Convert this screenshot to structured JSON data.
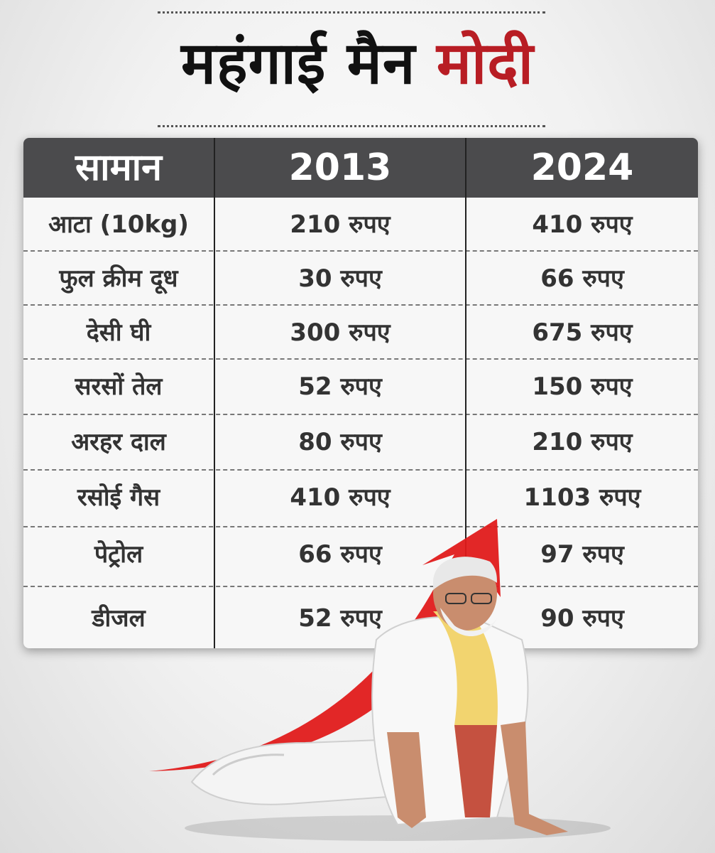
{
  "title": {
    "prefix": "महंगाई मैन",
    "highlight": "मोदी"
  },
  "table": {
    "headers": [
      "सामान",
      "2013",
      "2024"
    ],
    "rows": [
      {
        "item": "आटा (10kg)",
        "y2013": "210 रुपए",
        "y2024": "410 रुपए"
      },
      {
        "item": "फुल क्रीम दूध",
        "y2013": "30 रुपए",
        "y2024": "66 रुपए"
      },
      {
        "item": "देसी घी",
        "y2013": "300 रुपए",
        "y2024": "675 रुपए"
      },
      {
        "item": "सरसों तेल",
        "y2013": "52 रुपए",
        "y2024": "150 रुपए"
      },
      {
        "item": "अरहर दाल",
        "y2013": "80 रुपए",
        "y2024": "210 रुपए"
      },
      {
        "item": "रसोई गैस",
        "y2013": "410 रुपए",
        "y2024": "1103 रुपए"
      },
      {
        "item": "पेट्रोल",
        "y2013": "66 रुपए",
        "y2024": "97 रुपए"
      },
      {
        "item": "डीजल",
        "y2013": "52 रुपए",
        "y2024": "90 रुपए"
      }
    ]
  },
  "colors": {
    "accent": "#b81d24",
    "header_bg": "#4b4b4d",
    "arrow": "#e01b1b"
  },
  "icons": {
    "arrow": "red-rising-arrow-icon",
    "figure": "person-figure-icon"
  }
}
